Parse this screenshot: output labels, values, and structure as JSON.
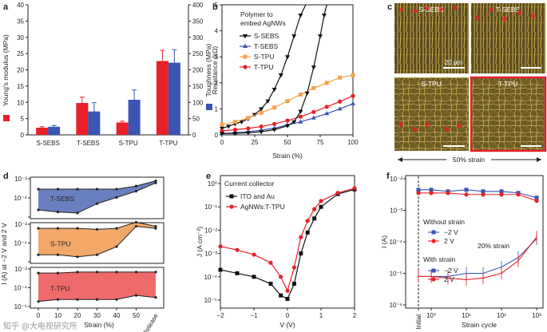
{
  "panels": {
    "a": {
      "label": "a",
      "ylabel_left": "Young's modulus (MPa)",
      "ylabel_right": "Toughness (MPa)",
      "yticks_left": [
        "0",
        "5",
        "10",
        "15",
        "20",
        "25",
        "30",
        "35",
        "40"
      ],
      "yticks_right": [
        "0",
        "50",
        "100",
        "150",
        "200",
        "250",
        "300",
        "350",
        "400"
      ]
    },
    "b": {
      "label": "b",
      "legend_title": "Polymer to embed AgNWs",
      "ylabel": "Resistance (kΩ)",
      "xlabel": "Strain (%)",
      "xticks": [
        "0",
        "25",
        "50",
        "75",
        "100"
      ],
      "yticks": [
        "0",
        "1",
        "2",
        "3",
        "4",
        "5"
      ]
    },
    "c": {
      "label": "c",
      "images": [
        "S-SEBS",
        "T-SEBS",
        "S-TPU",
        "T-TPU"
      ],
      "scalebar": "20 µm",
      "caption": "50% strain"
    },
    "d": {
      "label": "d",
      "ylabel": "I (A) at −2 V and 2 V",
      "xlabel": "Strain (%)",
      "xticks": [
        "0",
        "10",
        "20",
        "30",
        "40",
        "50"
      ],
      "xtick_release": "Release",
      "yticks": [
        "10⁻²",
        "10⁻⁴",
        "10⁻⁶"
      ],
      "subpanels": [
        "T-SEBS",
        "S-TPU",
        "T-TPU"
      ]
    },
    "e": {
      "label": "e",
      "legend_title": "Current collector",
      "ylabel": "J (A cm⁻²)",
      "xlabel": "V (V)",
      "xticks": [
        "−2",
        "−1",
        "0",
        "1",
        "2"
      ],
      "yticks": [
        "10⁰",
        "10⁻¹",
        "10⁻²",
        "10⁻³",
        "10⁻⁴",
        "10⁻⁵"
      ]
    },
    "f": {
      "label": "f",
      "ylabel": "I (A)",
      "xlabel": "Strain cycle",
      "xticks": [
        "Initial",
        "10⁰",
        "10¹",
        "10²",
        "10³"
      ],
      "yticks": [
        "10⁻²",
        "10⁻³",
        "10⁻⁴",
        "10⁻⁵",
        "10⁻⁶"
      ],
      "legend_without": "Without strain",
      "legend_with": "With strain",
      "legend_m2": "−2 V",
      "legend_p2": "2 V",
      "annotation": "20% strain"
    }
  },
  "watermark": "知乎 @大电视研究所",
  "colors": {
    "red": "#e8202a",
    "blue": "#3a55b4",
    "black": "#111111",
    "orange": "#f4a24a",
    "tsebs_fill": "#6a7fbf",
    "stpu_fill": "#f2a868",
    "ttpu_fill": "#ef6b6b"
  },
  "chart_data": [
    {
      "type": "bar",
      "panel": "a",
      "categories": [
        "S-SEBS",
        "T-SEBS",
        "S-TPU",
        "T-TPU"
      ],
      "ylim": [
        0,
        40
      ],
      "y2lim": [
        0,
        400
      ],
      "series": [
        {
          "name": "Young's modulus (MPa)",
          "axis": "left",
          "color": "#e8202a",
          "values": [
            2.2,
            9.8,
            3.8,
            22.7
          ],
          "errors": [
            0.3,
            1.8,
            0.4,
            3.3
          ]
        },
        {
          "name": "Toughness (MPa)",
          "axis": "right",
          "color": "#3a55b4",
          "values": [
            25,
            72,
            108,
            222
          ],
          "errors": [
            4,
            27,
            30,
            40
          ]
        }
      ]
    },
    {
      "type": "line",
      "panel": "b",
      "xlim": [
        0,
        100
      ],
      "ylim": [
        0,
        5
      ],
      "series": [
        {
          "name": "S-SEBS",
          "color": "#111111",
          "marker": "tri-down",
          "x": [
            0,
            5,
            10,
            15,
            20,
            25,
            30,
            35,
            40,
            45,
            50,
            55,
            60,
            64
          ],
          "y": [
            0.25,
            0.33,
            0.42,
            0.5,
            0.62,
            0.78,
            1.0,
            1.3,
            1.75,
            2.3,
            3.0,
            3.8,
            4.6,
            5.2
          ]
        },
        {
          "name": "T-SEBS",
          "color": "#3a55b4",
          "marker": "tri-up",
          "x": [
            0,
            10,
            20,
            30,
            40,
            50,
            60,
            70,
            80,
            90,
            100
          ],
          "y": [
            0.05,
            0.08,
            0.12,
            0.18,
            0.26,
            0.38,
            0.5,
            0.65,
            0.82,
            1.0,
            1.2
          ]
        },
        {
          "name": "S-TPU",
          "color": "#f4a24a",
          "marker": "square",
          "x": [
            0,
            10,
            20,
            30,
            40,
            50,
            60,
            70,
            80,
            90,
            100
          ],
          "y": [
            0.4,
            0.5,
            0.65,
            0.85,
            1.05,
            1.3,
            1.55,
            1.8,
            2.0,
            2.2,
            2.3
          ]
        },
        {
          "name": "T-TPU",
          "color": "#e8202a",
          "marker": "circle",
          "x": [
            0,
            10,
            20,
            30,
            40,
            50,
            60,
            70,
            80,
            90,
            100
          ],
          "y": [
            0.15,
            0.2,
            0.25,
            0.32,
            0.42,
            0.55,
            0.7,
            0.88,
            1.08,
            1.28,
            1.5
          ]
        },
        {
          "name": "",
          "color": "#111111",
          "marker": "tri-down",
          "x": [
            0,
            10,
            20,
            30,
            40,
            50,
            55,
            60,
            65,
            70,
            75,
            78,
            80
          ],
          "y": [
            0.05,
            0.06,
            0.08,
            0.12,
            0.2,
            0.35,
            0.5,
            0.9,
            1.6,
            2.6,
            3.8,
            4.6,
            5.2
          ]
        }
      ]
    },
    {
      "type": "area",
      "panel": "d",
      "x_positions": [
        "0",
        "10",
        "20",
        "30",
        "40",
        "50",
        "Release"
      ],
      "ylim": [
        "1e-6",
        "1e-2"
      ],
      "series": [
        {
          "name": "T-SEBS",
          "upper": [
            -3.0,
            -3.0,
            -3.0,
            -3.0,
            -3.0,
            -2.7,
            -2.2
          ],
          "lower": [
            -5.0,
            -5.2,
            -5.3,
            -4.4,
            -3.8,
            -3.2,
            -2.4
          ]
        },
        {
          "name": "S-TPU",
          "upper": [
            -2.4,
            -2.4,
            -2.4,
            -2.5,
            -2.4,
            -1.8,
            -2.2
          ],
          "lower": [
            -5.0,
            -5.0,
            -5.2,
            -5.0,
            -4.2,
            -2.2,
            -2.4
          ]
        },
        {
          "name": "T-TPU",
          "upper": [
            -2.4,
            -2.4,
            -2.3,
            -2.3,
            -2.3,
            -2.3,
            -2.3
          ],
          "lower": [
            -5.2,
            -5.0,
            -5.0,
            -5.0,
            -5.0,
            -4.6,
            -4.8
          ]
        }
      ]
    },
    {
      "type": "line",
      "panel": "e",
      "xlim": [
        -2,
        2
      ],
      "ylim": [
        "1e-5",
        "1e0"
      ],
      "series": [
        {
          "name": "ITO and Au",
          "color": "#111111",
          "marker": "square",
          "x": [
            -2,
            -1.5,
            -1,
            -0.5,
            -0.2,
            0,
            0.2,
            0.4,
            0.6,
            0.8,
            1,
            1.5,
            2
          ],
          "log10y": [
            -3.7,
            -3.85,
            -4.0,
            -4.3,
            -4.8,
            -4.95,
            -4.3,
            -3.0,
            -2.1,
            -1.5,
            -1.0,
            -0.45,
            -0.25
          ]
        },
        {
          "name": "AgNWs:T-TPU",
          "color": "#e8202a",
          "marker": "circle",
          "x": [
            -2,
            -1.5,
            -1,
            -0.5,
            -0.2,
            0,
            0.2,
            0.4,
            0.6,
            0.8,
            1,
            1.5,
            2
          ],
          "log10y": [
            -2.7,
            -2.85,
            -3.05,
            -3.4,
            -4.0,
            -4.6,
            -3.6,
            -2.3,
            -1.6,
            -1.1,
            -0.75,
            -0.4,
            -0.2
          ]
        }
      ]
    },
    {
      "type": "line",
      "panel": "f",
      "xscale": "log",
      "ylim": [
        "1e-6",
        "1e-2"
      ],
      "series": [
        {
          "name": "Without strain −2 V",
          "color": "#3a55b4",
          "marker": "square",
          "x": [
            0.3,
            1,
            3,
            10,
            30,
            100,
            300,
            1000
          ],
          "log10y": [
            -2.35,
            -2.35,
            -2.4,
            -2.35,
            -2.4,
            -2.4,
            -2.45,
            -2.6
          ]
        },
        {
          "name": "Without strain 2 V",
          "color": "#e8202a",
          "marker": "circle",
          "x": [
            0.3,
            1,
            3,
            10,
            30,
            100,
            300,
            1000
          ],
          "log10y": [
            -2.45,
            -2.45,
            -2.45,
            -2.5,
            -2.5,
            -2.5,
            -2.5,
            -2.7
          ]
        },
        {
          "name": "With strain −2 V",
          "color": "#3a55b4",
          "marker": "none",
          "x": [
            0.3,
            1,
            3,
            10,
            30,
            100,
            300,
            1000
          ],
          "log10y": [
            -5.1,
            -5.1,
            -5.1,
            -5.0,
            -5.0,
            -4.8,
            -4.5,
            -3.9
          ]
        },
        {
          "name": "With strain 2 V",
          "color": "#e8202a",
          "marker": "none",
          "x": [
            0.3,
            1,
            3,
            10,
            30,
            100,
            300,
            1000
          ],
          "log10y": [
            -5.1,
            -5.1,
            -5.15,
            -5.2,
            -5.15,
            -5.0,
            -4.6,
            -3.85
          ]
        }
      ]
    }
  ]
}
